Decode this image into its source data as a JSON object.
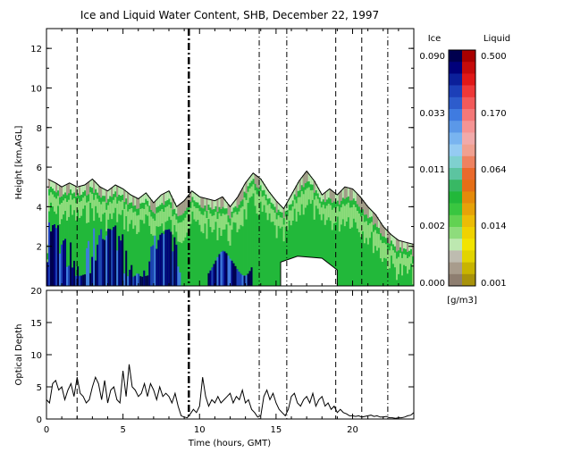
{
  "chart_data": [
    {
      "type": "heatmap",
      "title": "Ice and Liquid Water Content, SHB, December 22, 1997",
      "xlabel": "",
      "ylabel": "Height [km,AGL]",
      "xlim": [
        0,
        24
      ],
      "ylim": [
        0,
        13
      ],
      "x_ticks": [
        "0",
        "5",
        "10",
        "15",
        "20"
      ],
      "y_ticks": [
        "2",
        "4",
        "6",
        "8",
        "10",
        "12"
      ],
      "vertical_markers": {
        "dashed": [
          2.0,
          18.9,
          20.6
        ],
        "dash_dot": [
          13.9,
          15.7,
          22.3
        ],
        "bold_dash_dot": [
          9.3
        ]
      },
      "cloud_top_km": [
        [
          0.1,
          5.4
        ],
        [
          0.6,
          5.2
        ],
        [
          1.0,
          5.0
        ],
        [
          1.5,
          5.2
        ],
        [
          2.0,
          5.0
        ],
        [
          2.5,
          5.1
        ],
        [
          3.0,
          5.4
        ],
        [
          3.5,
          5.0
        ],
        [
          4.0,
          4.8
        ],
        [
          4.5,
          5.1
        ],
        [
          5.0,
          4.9
        ],
        [
          5.5,
          4.6
        ],
        [
          6.0,
          4.4
        ],
        [
          6.5,
          4.7
        ],
        [
          7.0,
          4.2
        ],
        [
          7.5,
          4.6
        ],
        [
          8.0,
          4.8
        ],
        [
          8.5,
          4.0
        ],
        [
          9.0,
          4.3
        ],
        [
          9.5,
          4.8
        ],
        [
          10.0,
          4.5
        ],
        [
          10.5,
          4.4
        ],
        [
          11.0,
          4.3
        ],
        [
          11.5,
          4.5
        ],
        [
          12.0,
          4.0
        ],
        [
          12.5,
          4.5
        ],
        [
          13.0,
          5.2
        ],
        [
          13.5,
          5.7
        ],
        [
          14.0,
          5.4
        ],
        [
          14.5,
          4.8
        ],
        [
          15.0,
          4.3
        ],
        [
          15.5,
          3.9
        ],
        [
          16.0,
          4.6
        ],
        [
          16.5,
          5.3
        ],
        [
          17.0,
          5.8
        ],
        [
          17.5,
          5.3
        ],
        [
          18.0,
          4.6
        ],
        [
          18.5,
          4.9
        ],
        [
          19.0,
          4.6
        ],
        [
          19.5,
          5.0
        ],
        [
          20.0,
          4.9
        ],
        [
          20.5,
          4.5
        ],
        [
          21.0,
          4.0
        ],
        [
          21.5,
          3.6
        ],
        [
          22.0,
          3.0
        ],
        [
          22.5,
          2.6
        ],
        [
          23.0,
          2.3
        ],
        [
          23.5,
          2.2
        ],
        [
          24.0,
          2.1
        ]
      ],
      "legend": {
        "ice_label": "Ice",
        "liquid_label": "Liquid",
        "unit": "[g/m3]",
        "ice_ticks": [
          "0.090",
          "0.033",
          "0.011",
          "0.002",
          "0.000"
        ],
        "liquid_ticks": [
          "0.500",
          "0.170",
          "0.064",
          "0.014",
          "0.001"
        ],
        "ice_colors": [
          "#00004e",
          "#00007a",
          "#0b1f9a",
          "#1c3fb8",
          "#2d5ccc",
          "#3f7be0",
          "#5b98e8",
          "#79b4f0",
          "#95cbf2",
          "#7fd0cf",
          "#5cc4a0",
          "#38b864",
          "#22b83a",
          "#39c640",
          "#62d252",
          "#8edc7c",
          "#bde8b0",
          "#bebcb0",
          "#a89c8c",
          "#8e7e70"
        ],
        "liquid_colors": [
          "#a80000",
          "#c60b0b",
          "#e01818",
          "#ee3838",
          "#f25a5a",
          "#f47878",
          "#f59494",
          "#f1aaaa",
          "#f0a090",
          "#ee8260",
          "#ea6a2c",
          "#e46e16",
          "#e48a0a",
          "#e6a208",
          "#ecbc06",
          "#f0d200",
          "#f2e400",
          "#e2d400",
          "#c8b400",
          "#a8920a"
        ]
      }
    },
    {
      "type": "line",
      "title": "",
      "xlabel": "Time (hours, GMT)",
      "ylabel": "Optical Depth",
      "xlim": [
        0,
        24
      ],
      "ylim": [
        0,
        20
      ],
      "x_ticks": [
        "0",
        "5",
        "10",
        "15",
        "20"
      ],
      "y_ticks": [
        "0",
        "5",
        "10",
        "15",
        "20"
      ],
      "x": [
        0.0,
        0.2,
        0.4,
        0.6,
        0.8,
        1.0,
        1.2,
        1.4,
        1.6,
        1.8,
        2.0,
        2.2,
        2.4,
        2.6,
        2.8,
        3.0,
        3.2,
        3.4,
        3.6,
        3.8,
        4.0,
        4.2,
        4.4,
        4.6,
        4.8,
        5.0,
        5.2,
        5.4,
        5.6,
        5.8,
        6.0,
        6.2,
        6.4,
        6.6,
        6.8,
        7.0,
        7.2,
        7.4,
        7.6,
        7.8,
        8.0,
        8.2,
        8.4,
        8.6,
        8.8,
        9.0,
        9.2,
        9.4,
        9.6,
        9.8,
        10.0,
        10.2,
        10.4,
        10.6,
        10.8,
        11.0,
        11.2,
        11.4,
        11.6,
        11.8,
        12.0,
        12.2,
        12.4,
        12.6,
        12.8,
        13.0,
        13.2,
        13.4,
        13.6,
        13.8,
        14.0,
        14.2,
        14.4,
        14.6,
        14.8,
        15.0,
        15.2,
        15.4,
        15.6,
        15.8,
        16.0,
        16.2,
        16.4,
        16.6,
        16.8,
        17.0,
        17.2,
        17.4,
        17.6,
        17.8,
        18.0,
        18.2,
        18.4,
        18.6,
        18.8,
        19.0,
        19.2,
        19.4,
        19.6,
        19.8,
        20.0,
        20.2,
        20.4,
        20.6,
        20.8,
        21.0,
        21.2,
        21.4,
        21.6,
        21.8,
        22.0,
        22.2,
        22.4,
        22.6,
        22.8,
        23.0,
        23.2,
        23.4,
        23.6,
        23.8,
        24.0
      ],
      "y": [
        3.0,
        2.5,
        5.5,
        6.0,
        4.5,
        5.0,
        3.0,
        4.5,
        5.5,
        3.5,
        6.5,
        4.0,
        3.5,
        2.5,
        3.0,
        5.0,
        6.5,
        5.5,
        3.0,
        6.0,
        2.5,
        4.5,
        5.0,
        3.0,
        2.5,
        7.5,
        3.5,
        8.5,
        5.0,
        4.5,
        3.5,
        4.0,
        5.5,
        3.5,
        5.5,
        4.5,
        3.0,
        5.0,
        3.5,
        4.0,
        3.5,
        2.5,
        4.0,
        2.0,
        0.5,
        0.3,
        0.2,
        0.8,
        1.5,
        1.0,
        2.0,
        6.5,
        3.5,
        2.0,
        3.0,
        2.5,
        3.5,
        2.5,
        3.0,
        3.5,
        4.0,
        2.5,
        3.5,
        3.0,
        4.5,
        2.5,
        3.0,
        1.5,
        1.0,
        0.3,
        0.5,
        3.5,
        4.5,
        3.0,
        4.0,
        2.5,
        1.5,
        1.0,
        0.5,
        1.5,
        3.5,
        4.0,
        2.5,
        2.0,
        3.0,
        3.5,
        2.5,
        4.0,
        2.0,
        3.0,
        3.5,
        2.0,
        2.5,
        1.5,
        2.0,
        1.0,
        1.5,
        1.0,
        0.8,
        0.5,
        0.5,
        0.4,
        0.5,
        0.3,
        0.4,
        0.5,
        0.6,
        0.4,
        0.5,
        0.3,
        0.3,
        0.4,
        0.2,
        0.2,
        0.1,
        0.2,
        0.2,
        0.3,
        0.5,
        0.6,
        1.0
      ]
    }
  ]
}
